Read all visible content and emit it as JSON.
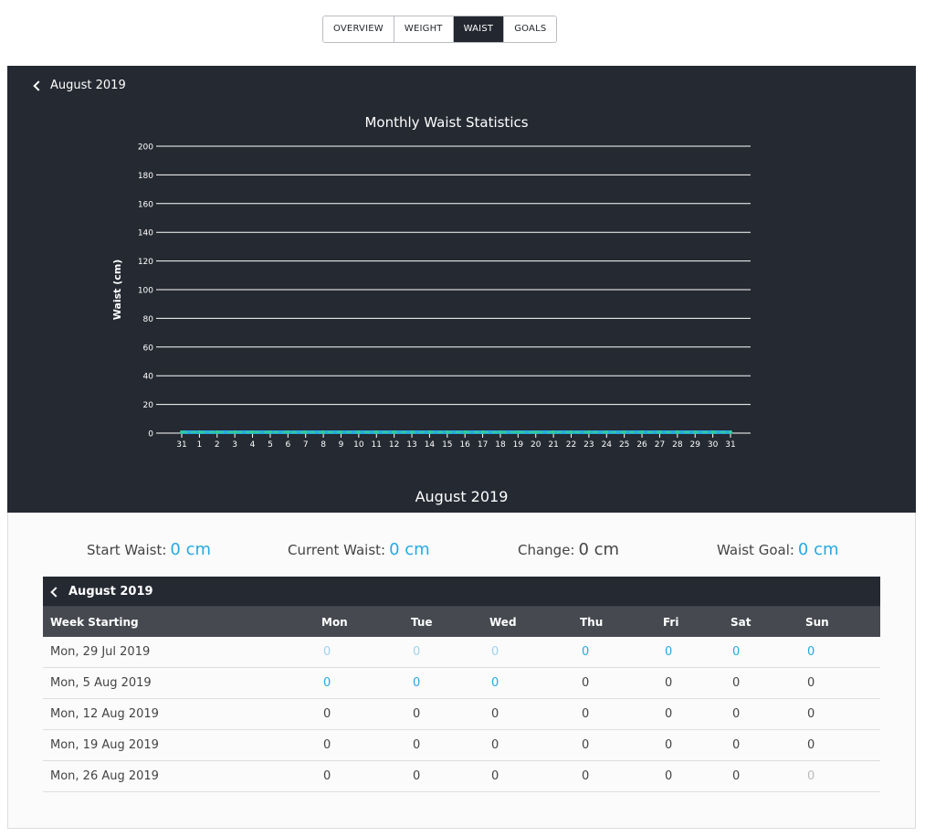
{
  "tabs": [
    {
      "label": "OVERVIEW",
      "active": false
    },
    {
      "label": "WEIGHT",
      "active": false
    },
    {
      "label": "WAIST",
      "active": true
    },
    {
      "label": "GOALS",
      "active": false
    }
  ],
  "chart_nav": {
    "prev_label": "August 2019"
  },
  "chart_footer": "August 2019",
  "chart_data": {
    "type": "line",
    "title": "Monthly Waist Statistics",
    "xlabel": "",
    "ylabel": "Waist (cm)",
    "ylim": [
      0,
      200
    ],
    "yticks": [
      0,
      20,
      40,
      60,
      80,
      100,
      120,
      140,
      160,
      180,
      200
    ],
    "grid": true,
    "categories": [
      "31",
      "1",
      "2",
      "3",
      "4",
      "5",
      "6",
      "7",
      "8",
      "9",
      "10",
      "11",
      "12",
      "13",
      "14",
      "15",
      "16",
      "17",
      "18",
      "19",
      "20",
      "21",
      "22",
      "23",
      "24",
      "25",
      "26",
      "27",
      "28",
      "29",
      "30",
      "31"
    ],
    "series": [
      {
        "values": [
          0,
          0,
          0,
          0,
          0,
          0,
          0,
          0,
          0,
          0,
          0,
          0,
          0,
          0,
          0,
          0,
          0,
          0,
          0,
          0,
          0,
          0,
          0,
          0,
          0,
          0,
          0,
          0,
          0,
          0,
          0,
          0
        ],
        "color": "#29a8e0"
      },
      {
        "values": [
          0,
          0,
          0,
          0,
          0,
          0,
          0,
          0,
          0,
          0,
          0,
          0,
          0,
          0,
          0,
          0,
          0,
          0,
          0,
          0,
          0,
          0,
          0,
          0,
          0,
          0,
          0,
          0,
          0,
          0,
          0,
          0
        ],
        "color": "#2ecc9a",
        "dashed": true
      }
    ]
  },
  "stats": {
    "start_label": "Start Waist:",
    "start_value": "0 cm",
    "current_label": "Current Waist:",
    "current_value": "0 cm",
    "change_label": "Change:",
    "change_value": "0 cm",
    "goal_label": "Waist Goal:",
    "goal_value": "0 cm"
  },
  "calendar": {
    "title": "August 2019",
    "headers": [
      "Week Starting",
      "Mon",
      "Tue",
      "Wed",
      "Thu",
      "Fri",
      "Sat",
      "Sun"
    ],
    "rows": [
      {
        "week": "Mon, 29 Jul 2019",
        "cells": [
          "0",
          "0",
          "0",
          "0",
          "0",
          "0",
          "0"
        ],
        "styles": [
          "faint",
          "faint",
          "faint",
          "blue",
          "blue",
          "blue",
          "blue"
        ]
      },
      {
        "week": "Mon, 5 Aug 2019",
        "cells": [
          "0",
          "0",
          "0",
          "0",
          "0",
          "0",
          "0"
        ],
        "styles": [
          "blue",
          "blue",
          "blue",
          "",
          "",
          "",
          ""
        ]
      },
      {
        "week": "Mon, 12 Aug 2019",
        "cells": [
          "0",
          "0",
          "0",
          "0",
          "0",
          "0",
          "0"
        ],
        "styles": [
          "",
          "",
          "",
          "",
          "",
          "",
          ""
        ]
      },
      {
        "week": "Mon, 19 Aug 2019",
        "cells": [
          "0",
          "0",
          "0",
          "0",
          "0",
          "0",
          "0"
        ],
        "styles": [
          "",
          "",
          "",
          "",
          "",
          "",
          ""
        ]
      },
      {
        "week": "Mon, 26 Aug 2019",
        "cells": [
          "0",
          "0",
          "0",
          "0",
          "0",
          "0",
          "0"
        ],
        "styles": [
          "",
          "",
          "",
          "",
          "",
          "",
          "grey"
        ]
      }
    ]
  }
}
